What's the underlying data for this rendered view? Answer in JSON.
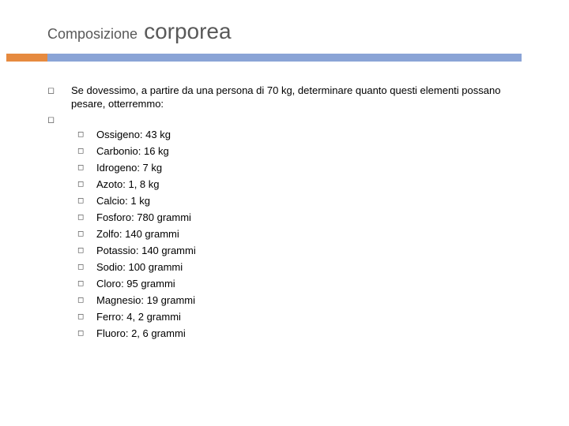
{
  "colors": {
    "background": "#ffffff",
    "title_text": "#595959",
    "rule_main": "#8aa4d6",
    "rule_accent": "#e68a3f",
    "body_text": "#000000",
    "bullet": "#404040"
  },
  "typography": {
    "title_small_fontsize": 18,
    "title_large_fontsize": 28,
    "body_fontsize": 13,
    "bullet_glyph": "◻"
  },
  "title": {
    "small": "Composizione",
    "large": "corporea"
  },
  "intro": "Se dovessimo, a partire da una persona di 70 kg, determinare quanto questi elementi possano pesare, otterremmo:",
  "elements": [
    "Ossigeno: 43 kg",
    "Carbonio: 16 kg",
    "Idrogeno: 7 kg",
    "Azoto: 1, 8 kg",
    "Calcio: 1 kg",
    "Fosforo: 780 grammi",
    "Zolfo: 140 grammi",
    "Potassio: 140 grammi",
    "Sodio: 100 grammi",
    "Cloro: 95 grammi",
    "Magnesio: 19 grammi",
    "Ferro: 4, 2 grammi",
    "Fluoro: 2, 6  grammi"
  ]
}
